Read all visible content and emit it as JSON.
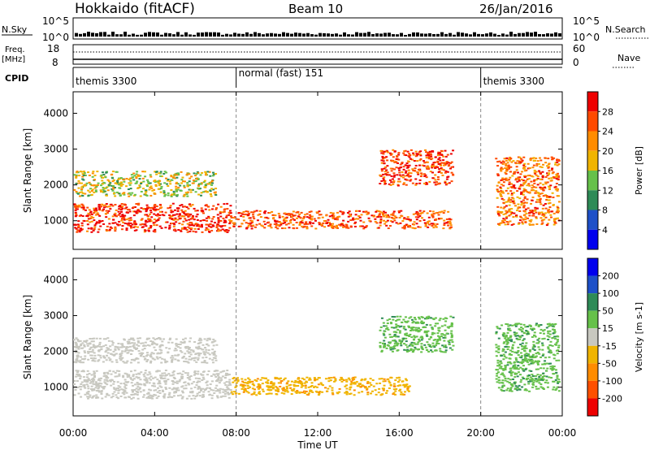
{
  "header": {
    "station": "Hokkaido (fitACF)",
    "beam": "Beam 10",
    "date": "26/Jan/2016"
  },
  "top_panels": {
    "nsky_label": "N.Sky",
    "nsky_ticks": [
      "10^5",
      "10^0"
    ],
    "nsearch_label": "N.Search",
    "freq_label_1": "Freq.",
    "freq_label_2": "[MHz]",
    "freq_ticks": [
      "18",
      "8"
    ],
    "nave_ticks": [
      "60",
      "0"
    ],
    "nave_label": "Nave",
    "cpid_label": "CPID",
    "cpid_segments": [
      {
        "label": "themis 3300",
        "start": "00:00",
        "end": "08:00"
      },
      {
        "label": "normal (fast) 151",
        "start": "08:00",
        "end": "20:00"
      },
      {
        "label": "themis 3300",
        "start": "20:00",
        "end": "24:00"
      }
    ]
  },
  "colors": {
    "power_scale": [
      "#0000ee",
      "#1e50c8",
      "#2e8b57",
      "#66c14a",
      "#f0b400",
      "#ff8c00",
      "#ff4a00",
      "#ee0000"
    ],
    "velocity_scale": [
      "#ee0000",
      "#ff5000",
      "#ff8c00",
      "#f0b400",
      "#c8c8c0",
      "#66c14a",
      "#2e8b57",
      "#1e50c8",
      "#0000ee"
    ]
  },
  "chart_data": [
    {
      "type": "heatmap",
      "title": "",
      "xlabel": "Time UT",
      "ylabel": "Slant Range [km]",
      "x_ticks": [
        "00:00",
        "04:00",
        "08:00",
        "12:00",
        "16:00",
        "20:00",
        "00:00"
      ],
      "y_ticks": [
        "1000",
        "2000",
        "3000",
        "4000"
      ],
      "ylim": [
        200,
        4600
      ],
      "colorbar_label": "Power [dB]",
      "colorbar_ticks": [
        "4",
        "8",
        "12",
        "16",
        "20",
        "24",
        "28"
      ],
      "clim": [
        0,
        32
      ],
      "scatter_regions": [
        {
          "t_start": 0.0,
          "t_end": 7.7,
          "range_low": 700,
          "range_high": 1500,
          "value": 28
        },
        {
          "t_start": 7.7,
          "t_end": 18.5,
          "range_low": 800,
          "range_high": 1300,
          "value": 26
        },
        {
          "t_start": 15.0,
          "t_end": 18.6,
          "range_low": 2000,
          "range_high": 3000,
          "value": 27
        },
        {
          "t_start": 0.0,
          "t_end": 7.0,
          "range_low": 1700,
          "range_high": 2400,
          "value": 16
        },
        {
          "t_start": 20.7,
          "t_end": 23.8,
          "range_low": 900,
          "range_high": 2800,
          "value": 24
        }
      ]
    },
    {
      "type": "heatmap",
      "title": "",
      "xlabel": "Time UT",
      "ylabel": "Slant Range [km]",
      "x_ticks": [
        "00:00",
        "04:00",
        "08:00",
        "12:00",
        "16:00",
        "20:00",
        "00:00"
      ],
      "y_ticks": [
        "1000",
        "2000",
        "3000",
        "4000"
      ],
      "ylim": [
        200,
        4600
      ],
      "colorbar_label": "Velocity [m s-1]",
      "colorbar_ticks": [
        "200",
        "100",
        "50",
        "15",
        "-15",
        "-50",
        "-100",
        "-200"
      ],
      "clim": [
        -250,
        250
      ],
      "scatter_regions": [
        {
          "t_start": 0.0,
          "t_end": 7.7,
          "range_low": 700,
          "range_high": 1500,
          "value": 0
        },
        {
          "t_start": 7.7,
          "t_end": 16.5,
          "range_low": 800,
          "range_high": 1300,
          "value": -40
        },
        {
          "t_start": 15.0,
          "t_end": 18.6,
          "range_low": 2000,
          "range_high": 3000,
          "value": 40
        },
        {
          "t_start": 0.0,
          "t_end": 7.0,
          "range_low": 1700,
          "range_high": 2400,
          "value": 0
        },
        {
          "t_start": 20.7,
          "t_end": 23.8,
          "range_low": 900,
          "range_high": 2800,
          "value": 40
        }
      ]
    }
  ]
}
